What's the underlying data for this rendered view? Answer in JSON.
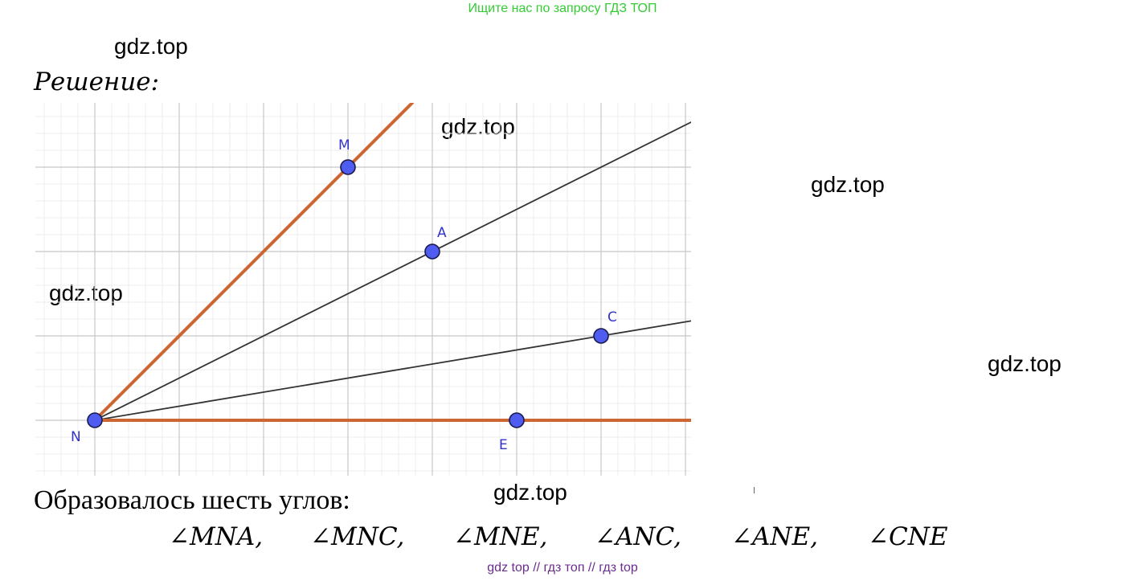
{
  "banner": {
    "text": "Ищите нас по запросу ГДЗ ТОП",
    "color": "#33cc33"
  },
  "watermarks": [
    "gdz.top",
    "gdz.top",
    "gdz.top",
    "gdz.top",
    "gdz.top",
    "gdz.top"
  ],
  "solution_label": "Решение:",
  "summary_text": "Образовалось шесть углов:",
  "angles": [
    "∠MNA,",
    "∠MNC,",
    "∠MNE,",
    "∠ANC,",
    "∠ANE,",
    "∠CNE"
  ],
  "footer": {
    "text": "gdz top  //  гдз топ  //  гдз top",
    "color": "#6a2c91"
  },
  "diagram": {
    "points": [
      {
        "name": "N",
        "x": 0,
        "y": 0
      },
      {
        "name": "M",
        "x": 3,
        "y": 3
      },
      {
        "name": "A",
        "x": 4,
        "y": 2
      },
      {
        "name": "C",
        "x": 6,
        "y": 1
      },
      {
        "name": "E",
        "x": 5,
        "y": 0
      }
    ],
    "rays": [
      {
        "from": "N",
        "through": "M",
        "color": "#cc6633"
      },
      {
        "from": "N",
        "through": "A",
        "color": "#333333"
      },
      {
        "from": "N",
        "through": "C",
        "color": "#333333"
      },
      {
        "from": "N",
        "through": "E",
        "color": "#cc6633"
      }
    ],
    "point_color": "#4f5cf0",
    "label_color": "#3333cc"
  }
}
